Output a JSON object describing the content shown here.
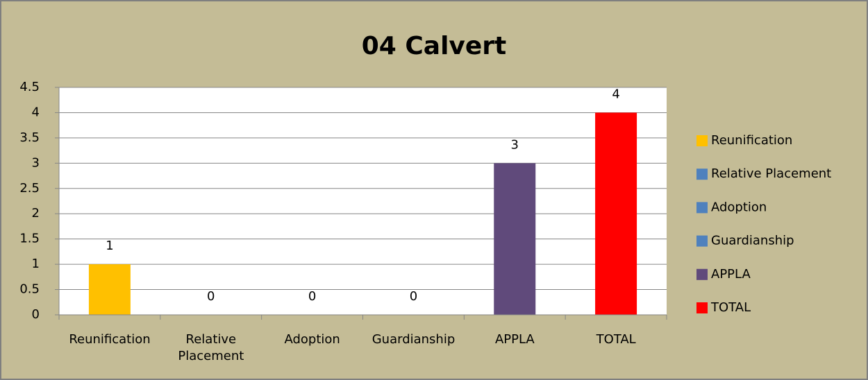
{
  "chart_data": {
    "type": "bar",
    "title": "04 Calvert",
    "categories": [
      "Reunification",
      "Relative Placement",
      "Adoption",
      "Guardianship",
      "APPLA",
      "TOTAL"
    ],
    "values": [
      1,
      0,
      0,
      0,
      3,
      4
    ],
    "colors": [
      "#ffc000",
      "#4f81bd",
      "#4f81bd",
      "#4f81bd",
      "#604a7b",
      "#ff0000"
    ],
    "ylim": [
      0,
      4.5
    ],
    "yticks": [
      0,
      0.5,
      1,
      1.5,
      2,
      2.5,
      3,
      3.5,
      4,
      4.5
    ],
    "grid": true,
    "legend": "right"
  }
}
